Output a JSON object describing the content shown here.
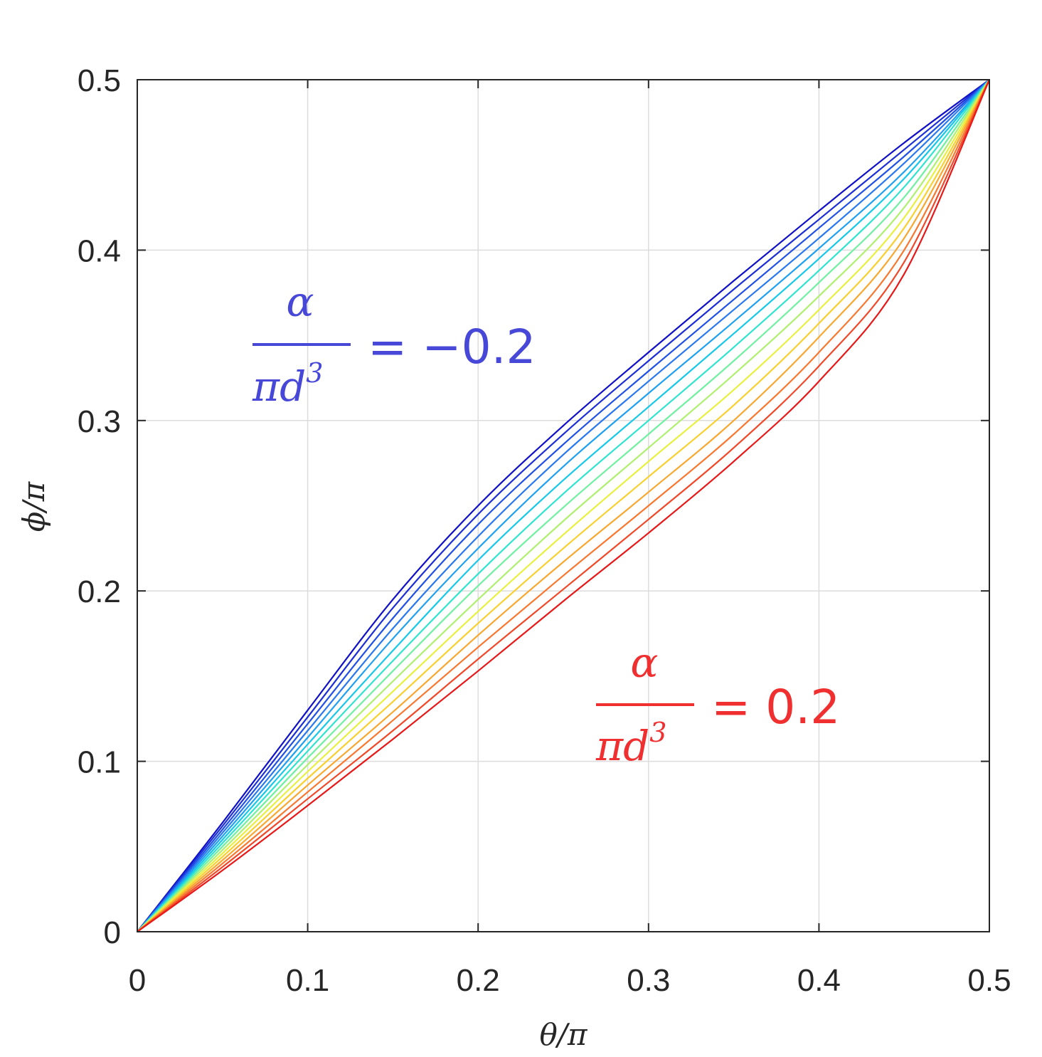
{
  "chart_data": {
    "type": "line",
    "xlabel": "θ/π",
    "ylabel": "ϕ/π",
    "xlim": [
      0,
      0.5
    ],
    "ylim": [
      0,
      0.5
    ],
    "xticks": [
      "0",
      "0.1",
      "0.2",
      "0.3",
      "0.4",
      "0.5"
    ],
    "yticks": [
      "0",
      "0.1",
      "0.2",
      "0.3",
      "0.4",
      "0.5"
    ],
    "grid": true,
    "x": [
      0,
      0.05,
      0.1,
      0.15,
      0.2,
      0.25,
      0.3,
      0.35,
      0.4,
      0.45,
      0.5
    ],
    "series": [
      {
        "color": "#1010c8",
        "values": [
          0,
          0.064,
          0.13,
          0.195,
          0.25,
          0.297,
          0.34,
          0.382,
          0.423,
          0.463,
          0.5
        ]
      },
      {
        "color": "#1c2ed6",
        "values": [
          0,
          0.062,
          0.126,
          0.19,
          0.245,
          0.292,
          0.335,
          0.377,
          0.418,
          0.459,
          0.5
        ]
      },
      {
        "color": "#2050e6",
        "values": [
          0,
          0.06,
          0.122,
          0.184,
          0.239,
          0.286,
          0.329,
          0.371,
          0.413,
          0.455,
          0.5
        ]
      },
      {
        "color": "#2a78f0",
        "values": [
          0,
          0.058,
          0.118,
          0.178,
          0.232,
          0.28,
          0.323,
          0.365,
          0.407,
          0.451,
          0.5
        ]
      },
      {
        "color": "#20a0f0",
        "values": [
          0,
          0.056,
          0.114,
          0.172,
          0.225,
          0.273,
          0.316,
          0.358,
          0.401,
          0.446,
          0.5
        ]
      },
      {
        "color": "#18c8e8",
        "values": [
          0,
          0.054,
          0.11,
          0.165,
          0.218,
          0.265,
          0.308,
          0.351,
          0.395,
          0.442,
          0.5
        ]
      },
      {
        "color": "#30e4d0",
        "values": [
          0,
          0.052,
          0.106,
          0.159,
          0.21,
          0.257,
          0.3,
          0.343,
          0.388,
          0.437,
          0.5
        ]
      },
      {
        "color": "#70f0a0",
        "values": [
          0,
          0.05,
          0.102,
          0.153,
          0.203,
          0.249,
          0.292,
          0.335,
          0.381,
          0.431,
          0.5
        ]
      },
      {
        "color": "#b0f070",
        "values": [
          0,
          0.048,
          0.098,
          0.147,
          0.195,
          0.241,
          0.284,
          0.327,
          0.373,
          0.425,
          0.5
        ]
      },
      {
        "color": "#e8f040",
        "values": [
          0,
          0.046,
          0.094,
          0.141,
          0.188,
          0.233,
          0.276,
          0.318,
          0.365,
          0.419,
          0.5
        ]
      },
      {
        "color": "#f8d030",
        "values": [
          0,
          0.044,
          0.09,
          0.135,
          0.181,
          0.225,
          0.267,
          0.309,
          0.357,
          0.413,
          0.5
        ]
      },
      {
        "color": "#f8a830",
        "values": [
          0,
          0.042,
          0.086,
          0.129,
          0.174,
          0.217,
          0.258,
          0.3,
          0.349,
          0.407,
          0.5
        ]
      },
      {
        "color": "#f87830",
        "values": [
          0,
          0.04,
          0.082,
          0.124,
          0.167,
          0.209,
          0.25,
          0.292,
          0.34,
          0.4,
          0.5
        ]
      },
      {
        "color": "#f04828",
        "values": [
          0,
          0.038,
          0.078,
          0.118,
          0.16,
          0.201,
          0.242,
          0.284,
          0.332,
          0.393,
          0.5
        ]
      },
      {
        "color": "#e81818",
        "values": [
          0,
          0.036,
          0.074,
          0.113,
          0.153,
          0.194,
          0.234,
          0.276,
          0.323,
          0.386,
          0.5
        ]
      }
    ],
    "annotations": [
      {
        "numerator": "α",
        "denominator": "πd",
        "exponent": "3",
        "value": "= −0.2",
        "color": "#4848d8"
      },
      {
        "numerator": "α",
        "denominator": "πd",
        "exponent": "3",
        "value": "= 0.2",
        "color": "#f03030"
      }
    ]
  }
}
